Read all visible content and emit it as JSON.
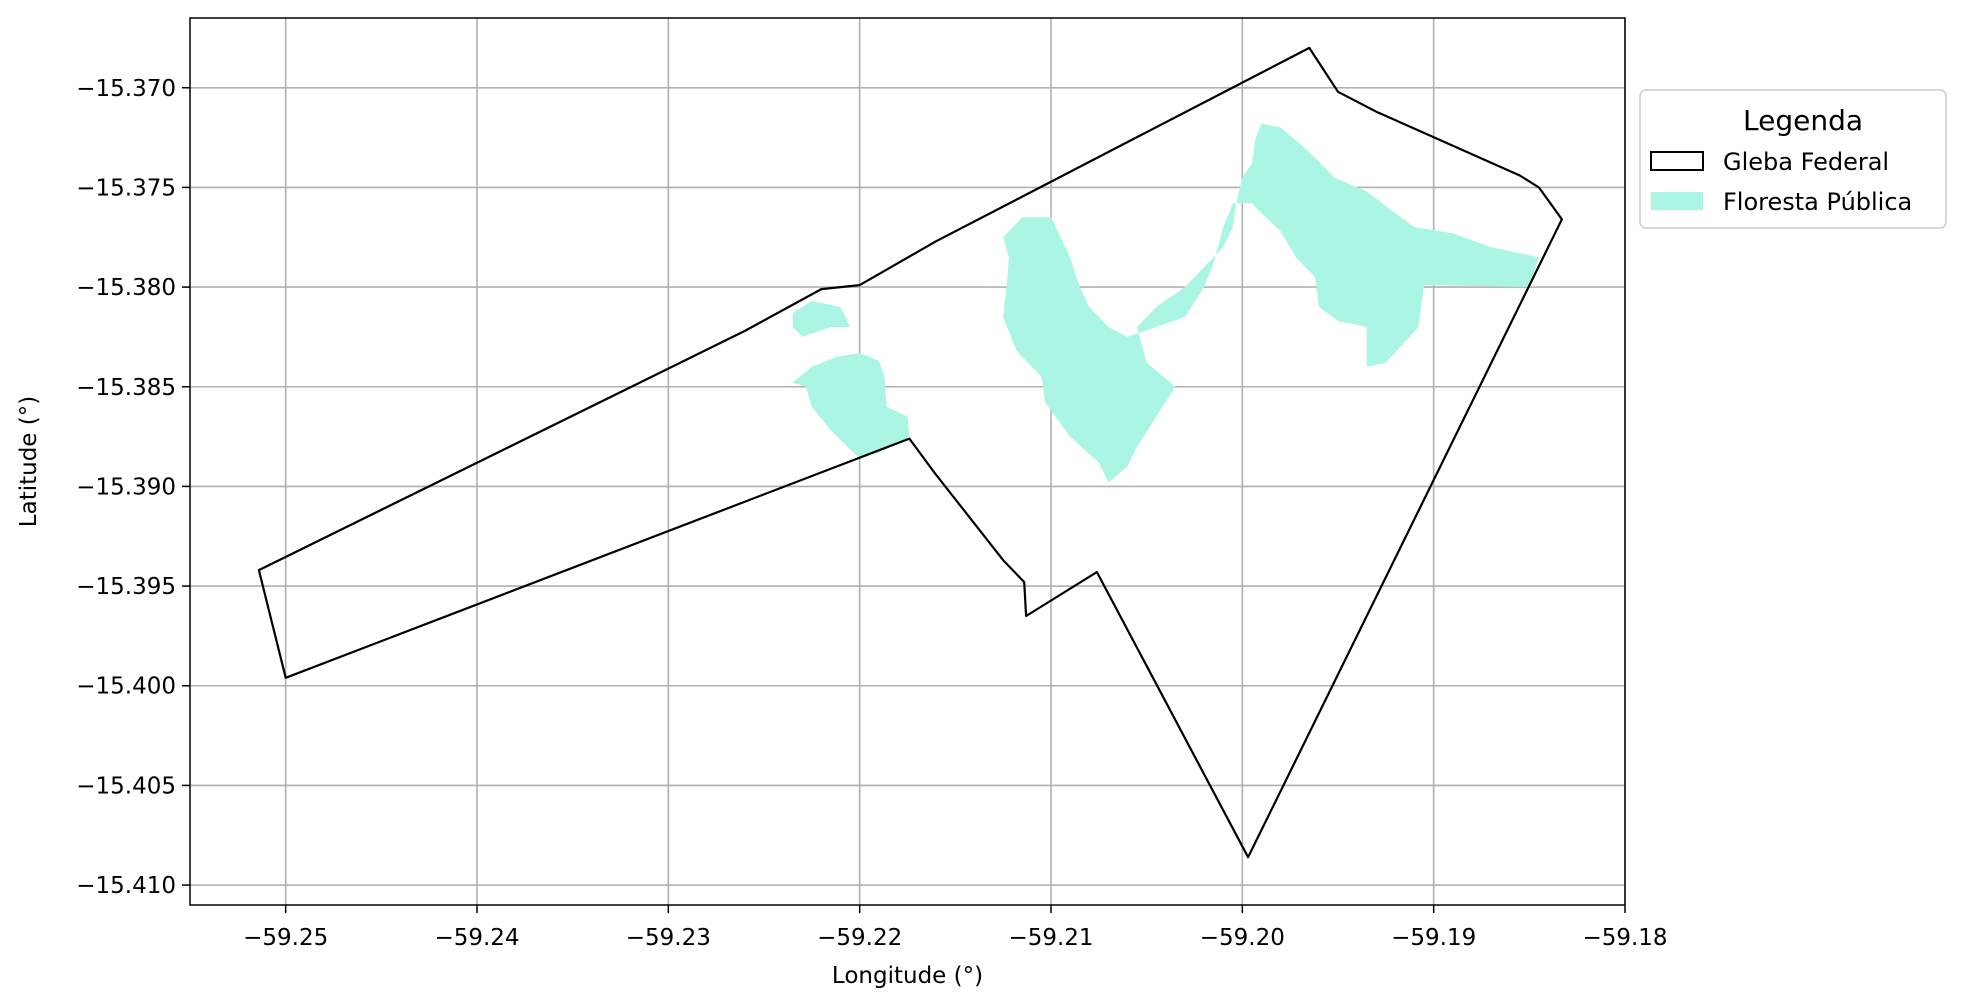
{
  "chart_data": {
    "type": "map",
    "title": "",
    "xlabel": "Longitude (°)",
    "ylabel": "Latitude (°)",
    "xlim": [
      -59.255,
      -59.18
    ],
    "ylim": [
      -15.411,
      -15.3665
    ],
    "xticks": [
      -59.25,
      -59.24,
      -59.23,
      -59.22,
      -59.21,
      -59.2,
      -59.19,
      -59.18
    ],
    "xtick_labels": [
      "−59.25",
      "−59.24",
      "−59.23",
      "−59.22",
      "−59.21",
      "−59.20",
      "−59.19",
      "−59.18"
    ],
    "yticks": [
      -15.37,
      -15.375,
      -15.38,
      -15.385,
      -15.39,
      -15.395,
      -15.4,
      -15.405,
      -15.41
    ],
    "ytick_labels": [
      "−15.370",
      "−15.375",
      "−15.380",
      "−15.385",
      "−15.390",
      "−15.395",
      "−15.400",
      "−15.405",
      "−15.410"
    ],
    "grid": true,
    "legend": {
      "title": "Legenda",
      "placement": "outside-right-top",
      "entries": [
        {
          "label": "Gleba Federal",
          "style": "outline",
          "color": "#000000"
        },
        {
          "label": "Floresta Pública",
          "style": "fill",
          "color": "#aaf5e3"
        }
      ]
    },
    "layers": [
      {
        "name": "Gleba Federal",
        "kind": "polygon-outline",
        "stroke": "#000000",
        "coordinates": [
          [
            -59.2514,
            -15.3942
          ],
          [
            -59.25,
            -15.3996
          ],
          [
            -59.2174,
            -15.3876
          ],
          [
            -59.2161,
            -15.3893
          ],
          [
            -59.2125,
            -15.3937
          ],
          [
            -59.2114,
            -15.3948
          ],
          [
            -59.2113,
            -15.3965
          ],
          [
            -59.2076,
            -15.3943
          ],
          [
            -59.1997,
            -15.4086
          ],
          [
            -59.1833,
            -15.3766
          ],
          [
            -59.1845,
            -15.375
          ],
          [
            -59.1855,
            -15.3744
          ],
          [
            -59.193,
            -15.3712
          ],
          [
            -59.195,
            -15.3702
          ],
          [
            -59.1965,
            -15.368
          ],
          [
            -59.216,
            -15.3777
          ],
          [
            -59.22,
            -15.3799
          ],
          [
            -59.222,
            -15.3801
          ],
          [
            -59.226,
            -15.3822
          ],
          [
            -59.2514,
            -15.3942
          ]
        ]
      },
      {
        "name": "Floresta Pública",
        "kind": "polygon-fill",
        "fill": "#aaf5e3",
        "polygons": [
          [
            [
              -59.2235,
              -15.3813
            ],
            [
              -59.2225,
              -15.3807
            ],
            [
              -59.221,
              -15.381
            ],
            [
              -59.2205,
              -15.382
            ],
            [
              -59.2215,
              -15.382
            ],
            [
              -59.223,
              -15.3825
            ],
            [
              -59.2235,
              -15.382
            ]
          ],
          [
            [
              -59.2235,
              -15.3848
            ],
            [
              -59.2225,
              -15.384
            ],
            [
              -59.2212,
              -15.3835
            ],
            [
              -59.22,
              -15.3833
            ],
            [
              -59.219,
              -15.3837
            ],
            [
              -59.2187,
              -15.3845
            ],
            [
              -59.2186,
              -15.386
            ],
            [
              -59.2175,
              -15.3865
            ],
            [
              -59.2174,
              -15.3875
            ],
            [
              -59.219,
              -15.3883
            ],
            [
              -59.22,
              -15.3886
            ],
            [
              -59.2215,
              -15.3872
            ],
            [
              -59.2225,
              -15.386
            ],
            [
              -59.2228,
              -15.385
            ]
          ],
          [
            [
              -59.2125,
              -15.3775
            ],
            [
              -59.2122,
              -15.3785
            ],
            [
              -59.2123,
              -15.3798
            ],
            [
              -59.2125,
              -15.3815
            ],
            [
              -59.2118,
              -15.3832
            ],
            [
              -59.2105,
              -15.3845
            ],
            [
              -59.2103,
              -15.3858
            ],
            [
              -59.209,
              -15.3875
            ],
            [
              -59.2075,
              -15.3888
            ],
            [
              -59.207,
              -15.3898
            ],
            [
              -59.206,
              -15.389
            ],
            [
              -59.2055,
              -15.388
            ],
            [
              -59.2045,
              -15.3865
            ],
            [
              -59.2035,
              -15.385
            ],
            [
              -59.205,
              -15.3838
            ],
            [
              -59.2055,
              -15.382
            ],
            [
              -59.2045,
              -15.381
            ],
            [
              -59.203,
              -15.38
            ],
            [
              -59.201,
              -15.378
            ],
            [
              -59.2005,
              -15.377
            ],
            [
              -59.2003,
              -15.3757
            ],
            [
              -59.2,
              -15.3745
            ],
            [
              -59.1995,
              -15.3738
            ],
            [
              -59.1993,
              -15.3725
            ],
            [
              -59.199,
              -15.3718
            ],
            [
              -59.198,
              -15.372
            ],
            [
              -59.197,
              -15.3728
            ],
            [
              -59.196,
              -15.3737
            ],
            [
              -59.1952,
              -15.3745
            ],
            [
              -59.1935,
              -15.3752
            ],
            [
              -59.192,
              -15.3763
            ],
            [
              -59.191,
              -15.377
            ],
            [
              -59.189,
              -15.3773
            ],
            [
              -59.187,
              -15.378
            ],
            [
              -59.1845,
              -15.3785
            ],
            [
              -59.185,
              -15.38
            ],
            [
              -59.1905,
              -15.3799
            ],
            [
              -59.1908,
              -15.382
            ],
            [
              -59.1925,
              -15.3838
            ],
            [
              -59.1935,
              -15.384
            ],
            [
              -59.1935,
              -15.382
            ],
            [
              -59.195,
              -15.3817
            ],
            [
              -59.196,
              -15.381
            ],
            [
              -59.1962,
              -15.3795
            ],
            [
              -59.1972,
              -15.3785
            ],
            [
              -59.198,
              -15.3772
            ],
            [
              -59.199,
              -15.3763
            ],
            [
              -59.1995,
              -15.3758
            ],
            [
              -59.2005,
              -15.3758
            ],
            [
              -59.201,
              -15.377
            ],
            [
              -59.2015,
              -15.3788
            ],
            [
              -59.202,
              -15.38
            ],
            [
              -59.203,
              -15.3815
            ],
            [
              -59.2045,
              -15.382
            ],
            [
              -59.206,
              -15.3825
            ],
            [
              -59.207,
              -15.382
            ],
            [
              -59.208,
              -15.381
            ],
            [
              -59.2085,
              -15.38
            ],
            [
              -59.209,
              -15.3785
            ],
            [
              -59.2095,
              -15.3775
            ],
            [
              -59.21,
              -15.3765
            ],
            [
              -59.2115,
              -15.3765
            ]
          ]
        ]
      }
    ]
  }
}
